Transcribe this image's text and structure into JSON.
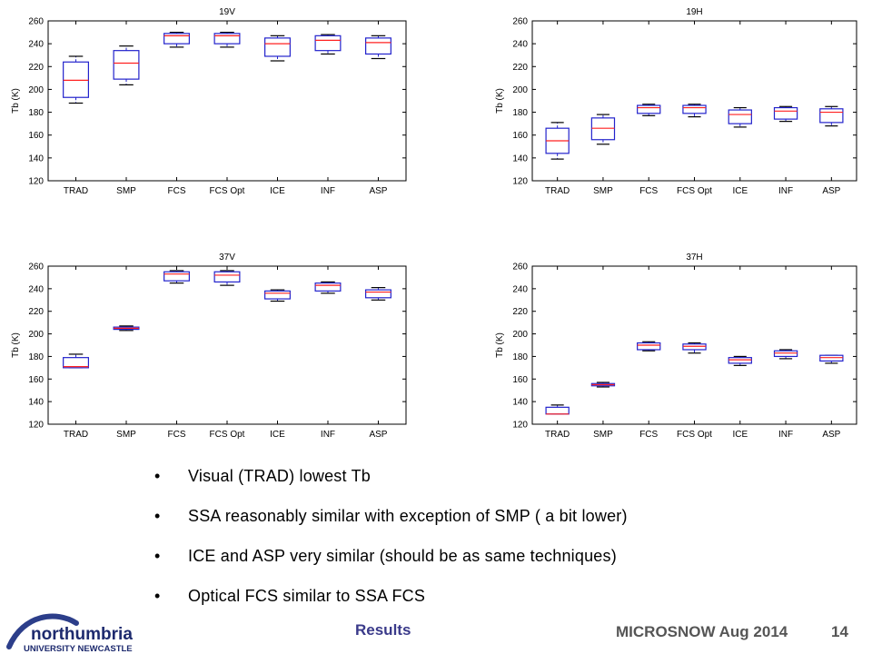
{
  "chart_data": [
    {
      "type": "box",
      "title": "19V",
      "ylabel": "Tb (K)",
      "ylim": [
        120,
        260
      ],
      "yticks": [
        120,
        140,
        160,
        180,
        200,
        220,
        240,
        260
      ],
      "categories": [
        "TRAD",
        "SMP",
        "FCS",
        "FCS Opt",
        "ICE",
        "INF",
        "ASP"
      ],
      "boxes": [
        {
          "whisker_low": 188,
          "q1": 193,
          "median": 208,
          "q3": 224,
          "whisker_high": 229
        },
        {
          "whisker_low": 204,
          "q1": 209,
          "median": 223,
          "q3": 234,
          "whisker_high": 238
        },
        {
          "whisker_low": 237,
          "q1": 240,
          "median": 247,
          "q3": 249,
          "whisker_high": 250
        },
        {
          "whisker_low": 237,
          "q1": 240,
          "median": 247,
          "q3": 249,
          "whisker_high": 250
        },
        {
          "whisker_low": 225,
          "q1": 229,
          "median": 240,
          "q3": 245,
          "whisker_high": 247
        },
        {
          "whisker_low": 231,
          "q1": 234,
          "median": 243,
          "q3": 247,
          "whisker_high": 248
        },
        {
          "whisker_low": 227,
          "q1": 231,
          "median": 241,
          "q3": 245,
          "whisker_high": 247
        }
      ]
    },
    {
      "type": "box",
      "title": "19H",
      "ylabel": "Tb (K)",
      "ylim": [
        120,
        260
      ],
      "yticks": [
        120,
        140,
        160,
        180,
        200,
        220,
        240,
        260
      ],
      "categories": [
        "TRAD",
        "SMP",
        "FCS",
        "FCS Opt",
        "ICE",
        "INF",
        "ASP"
      ],
      "boxes": [
        {
          "whisker_low": 139,
          "q1": 144,
          "median": 155,
          "q3": 166,
          "whisker_high": 171
        },
        {
          "whisker_low": 152,
          "q1": 156,
          "median": 166,
          "q3": 175,
          "whisker_high": 178
        },
        {
          "whisker_low": 177,
          "q1": 179,
          "median": 184,
          "q3": 186,
          "whisker_high": 187
        },
        {
          "whisker_low": 176,
          "q1": 179,
          "median": 184,
          "q3": 186,
          "whisker_high": 187
        },
        {
          "whisker_low": 167,
          "q1": 170,
          "median": 178,
          "q3": 182,
          "whisker_high": 184
        },
        {
          "whisker_low": 172,
          "q1": 174,
          "median": 181,
          "q3": 184,
          "whisker_high": 185
        },
        {
          "whisker_low": 168,
          "q1": 171,
          "median": 180,
          "q3": 183,
          "whisker_high": 185
        }
      ]
    },
    {
      "type": "box",
      "title": "37V",
      "ylabel": "Tb (K)",
      "ylim": [
        120,
        260
      ],
      "yticks": [
        120,
        140,
        160,
        180,
        200,
        220,
        240,
        260
      ],
      "categories": [
        "TRAD",
        "SMP",
        "FCS",
        "FCS Opt",
        "ICE",
        "INF",
        "ASP"
      ],
      "boxes": [
        {
          "whisker_low": 170,
          "q1": 170,
          "median": 171,
          "q3": 179,
          "whisker_high": 182
        },
        {
          "whisker_low": 203,
          "q1": 204,
          "median": 205,
          "q3": 206,
          "whisker_high": 207
        },
        {
          "whisker_low": 245,
          "q1": 247,
          "median": 253,
          "q3": 255,
          "whisker_high": 256
        },
        {
          "whisker_low": 243,
          "q1": 246,
          "median": 252,
          "q3": 255,
          "whisker_high": 256
        },
        {
          "whisker_low": 229,
          "q1": 231,
          "median": 236,
          "q3": 238,
          "whisker_high": 239
        },
        {
          "whisker_low": 236,
          "q1": 238,
          "median": 243,
          "q3": 245,
          "whisker_high": 246
        },
        {
          "whisker_low": 230,
          "q1": 232,
          "median": 237,
          "q3": 239,
          "whisker_high": 241
        }
      ]
    },
    {
      "type": "box",
      "title": "37H",
      "ylabel": "Tb (K)",
      "ylim": [
        120,
        260
      ],
      "yticks": [
        120,
        140,
        160,
        180,
        200,
        220,
        240,
        260
      ],
      "categories": [
        "TRAD",
        "SMP",
        "FCS",
        "FCS Opt",
        "ICE",
        "INF",
        "ASP"
      ],
      "boxes": [
        {
          "whisker_low": 129,
          "q1": 129,
          "median": 129,
          "q3": 135,
          "whisker_high": 137
        },
        {
          "whisker_low": 153,
          "q1": 154,
          "median": 155,
          "q3": 156,
          "whisker_high": 157
        },
        {
          "whisker_low": 185,
          "q1": 186,
          "median": 190,
          "q3": 192,
          "whisker_high": 193
        },
        {
          "whisker_low": 183,
          "q1": 186,
          "median": 189,
          "q3": 191,
          "whisker_high": 192
        },
        {
          "whisker_low": 172,
          "q1": 174,
          "median": 177,
          "q3": 179,
          "whisker_high": 180
        },
        {
          "whisker_low": 178,
          "q1": 180,
          "median": 183,
          "q3": 185,
          "whisker_high": 186
        },
        {
          "whisker_low": 174,
          "q1": 176,
          "median": 179,
          "q3": 181,
          "whisker_high": 181
        }
      ]
    }
  ],
  "colors": {
    "box": "#2222cc",
    "median": "#ff2020",
    "whisker": "#000000",
    "axis": "#000000"
  },
  "bullets": [
    "Visual  (TRAD) lowest Tb",
    "SSA reasonably similar with exception of SMP ( a bit lower)",
    "ICE and ASP very similar (should be as same techniques)",
    "Optical FCS similar to SSA FCS"
  ],
  "bullet_marker": "•",
  "footer": {
    "logo_text": "northumbria",
    "logo_subtext": "UNIVERSITY NEWCASTLE",
    "section": "Results",
    "conference": "MICROSNOW Aug 2014",
    "page": "14"
  }
}
